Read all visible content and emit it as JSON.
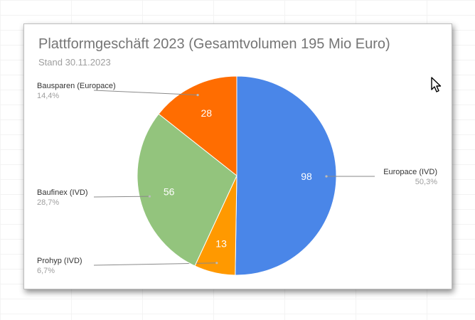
{
  "chart_data": {
    "type": "pie",
    "title": "Plattformgeschäft 2023 (Gesamtvolumen 195 Mio Euro)",
    "subtitle": "Stand 30.11.2023",
    "slices": [
      {
        "label": "Europace (IVD)",
        "value": 98,
        "percent": "50,3%",
        "color": "#4a86e8"
      },
      {
        "label": "Prohyp (IVD)",
        "value": 13,
        "percent": "6,7%",
        "color": "#ff9900"
      },
      {
        "label": "Baufinex (IVD)",
        "value": 56,
        "percent": "28,7%",
        "color": "#93c47d"
      },
      {
        "label": "Bausparen (Europace)",
        "value": 28,
        "percent": "14,4%",
        "color": "#ff6d01"
      }
    ],
    "legend": "leader-labels"
  },
  "colors": {
    "title": "#757575",
    "subtitle": "#9e9e9e",
    "label": "#333333",
    "percent": "#9e9e9e",
    "leader": "#8a8a8a"
  },
  "icons": {
    "cursor": "mouse-pointer-icon"
  }
}
